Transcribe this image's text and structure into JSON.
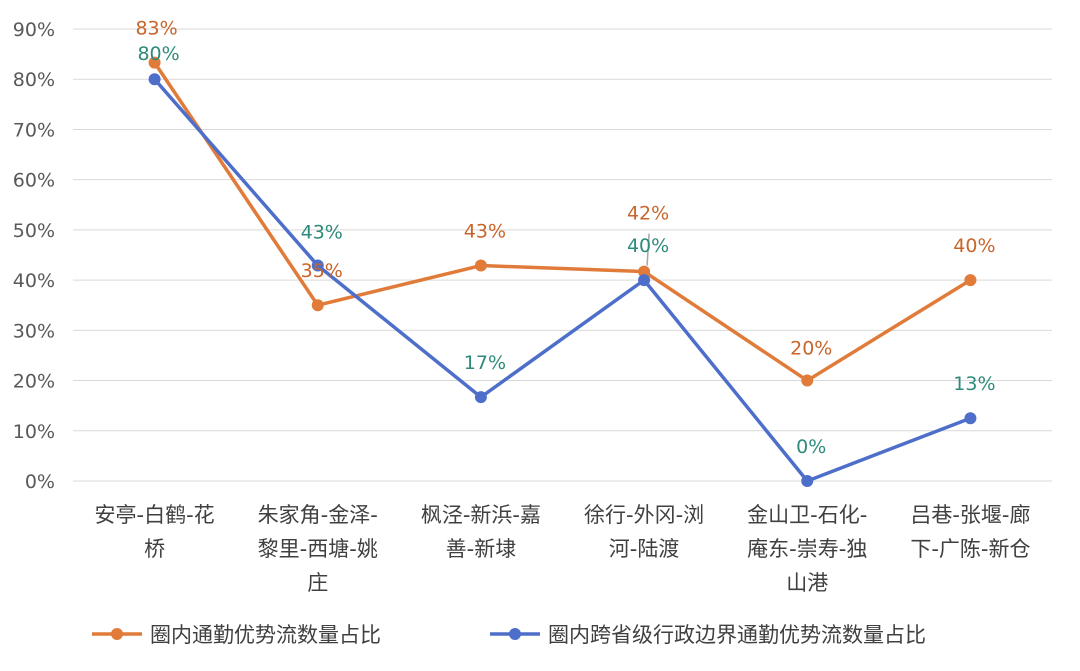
{
  "chart_data": {
    "type": "line",
    "title": "",
    "xlabel": "",
    "ylabel": "",
    "ylim": [
      0,
      90
    ],
    "yticks": [
      "0%",
      "10%",
      "20%",
      "30%",
      "40%",
      "50%",
      "60%",
      "70%",
      "80%",
      "90%"
    ],
    "grid": true,
    "legend_position": "bottom",
    "categories": [
      [
        "安亭-白鹤-花",
        "桥"
      ],
      [
        "朱家角-金泽-",
        "黎里-西塘-姚",
        "庄"
      ],
      [
        "枫泾-新浜-嘉",
        "善-新埭"
      ],
      [
        "徐行-外冈-浏",
        "河-陆渡"
      ],
      [
        "金山卫-石化-",
        "庵东-崇寿-独",
        "山港"
      ],
      [
        "吕巷-张堰-廊",
        "下-广陈-新仓"
      ]
    ],
    "series": [
      {
        "name": "圈内通勤优势流数量占比",
        "color": "#E07B39",
        "label_color": "#C8652A",
        "values": [
          83.3,
          35,
          42.9,
          41.7,
          20,
          40
        ],
        "labels": [
          "83%",
          "35%",
          "43%",
          "42%",
          "20%",
          "40%"
        ]
      },
      {
        "name": "圈内跨省级行政边界通勤优势流数量占比",
        "color": "#4E6FC9",
        "label_color": "#2E8B7B",
        "values": [
          80,
          42.9,
          16.7,
          40,
          0,
          12.5
        ],
        "labels": [
          "80%",
          "43%",
          "17%",
          "40%",
          "0%",
          "13%"
        ]
      }
    ]
  }
}
